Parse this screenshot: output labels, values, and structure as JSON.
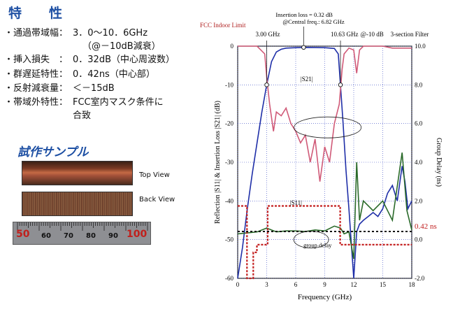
{
  "specs": {
    "title": "特　性",
    "items": [
      {
        "label": "・通過帯域幅：",
        "value": "3．0～10．6GHz"
      },
      {
        "label": "",
        "value": "（@－10dB減衰）"
      },
      {
        "label": "・挿入損失　：",
        "value": "0．32dB（中心周波数）"
      },
      {
        "label": "・群遅延特性：",
        "value": "0．42ns（中心部）"
      },
      {
        "label": "・反射減衰量：",
        "value": "＜－15dB"
      },
      {
        "label": "・帯域外特性：",
        "value": "FCC室内マスク条件に"
      },
      {
        "label": "",
        "value": "合致"
      }
    ]
  },
  "sample": {
    "title": "試作サンプル",
    "top_view": "Top View",
    "back_view": "Back View",
    "ruler_marks": [
      "50",
      "60",
      "70",
      "80",
      "90",
      "100"
    ]
  },
  "chart_data": {
    "type": "line",
    "annotations": {
      "fcc": "FCC Indoor Limit",
      "insertion_loss": "Insertion loss = 0.32 dB",
      "central_freq": "@Central freq.: 6.82 GHz",
      "f_low": "3.00 GHz",
      "f_high": "10.63 GHz",
      "at_10db": "@-10 dB",
      "filter": "3-section Filter",
      "s21": "|S21|",
      "s11": "|S11|",
      "group_delay": "group delay",
      "gd_value": "0.42 ns"
    },
    "xlabel": "Frequency (GHz)",
    "ylabel": "Reflection |S11| & Insertion Loss |S21| (dB)",
    "y2label": "Group Delay (ns)",
    "xlim": [
      0,
      18
    ],
    "ylim": [
      -60,
      0
    ],
    "y2lim": [
      -2.0,
      10.0
    ],
    "xticks": [
      "0",
      "3",
      "6",
      "9",
      "12",
      "15",
      "18"
    ],
    "yticks": [
      "0",
      "-10",
      "-20",
      "-30",
      "-40",
      "-50",
      "-60"
    ],
    "y2ticks": [
      "10.0",
      "8.0",
      "6.0",
      "4.0",
      "2.0",
      "0.0",
      "-2.0"
    ],
    "series": [
      {
        "name": "|S21|",
        "color": "#1f2fa8",
        "x": [
          0,
          0.5,
          1,
          1.5,
          2,
          2.5,
          3,
          3.5,
          4,
          4.5,
          5,
          6,
          7,
          8,
          9,
          10,
          10.4,
          10.63,
          10.9,
          11.2,
          11.5,
          12,
          12.3,
          12.6,
          13,
          13.5,
          14,
          14.5,
          15,
          15.5,
          16,
          16.5,
          17,
          17.3,
          17.6,
          18
        ],
        "y": [
          -60,
          -52,
          -42,
          -33,
          -25,
          -17,
          -10,
          -4,
          -1.5,
          -0.8,
          -0.5,
          -0.4,
          -0.32,
          -0.35,
          -0.4,
          -0.6,
          -2,
          -10,
          -20,
          -32,
          -42,
          -60,
          -48,
          -46,
          -45,
          -44,
          -43,
          -44,
          -42,
          -38,
          -36,
          -40,
          -31,
          -35,
          -42,
          -40
        ]
      },
      {
        "name": "|S11|",
        "color": "#d05a78",
        "x": [
          0,
          1,
          2,
          2.8,
          3,
          3.3,
          3.7,
          4,
          4.5,
          5,
          5.5,
          6,
          6.5,
          7,
          7.5,
          8,
          8.5,
          9,
          9.5,
          10,
          10.5,
          10.8,
          11,
          11.5,
          12,
          12.3,
          12.6,
          13,
          14,
          15,
          16,
          17,
          18
        ],
        "y": [
          0,
          0,
          0,
          -2,
          -8,
          -15,
          -22,
          -17,
          -18,
          -16,
          -20,
          -22,
          -25,
          -23,
          -30,
          -24,
          -35,
          -26,
          -30,
          -20,
          -15,
          -6,
          -2,
          -0.5,
          -1,
          -7,
          -1,
          0,
          0,
          0,
          -0.5,
          -0.5,
          -0.5
        ]
      },
      {
        "name": "group delay",
        "color": "#2a6a2a",
        "x": [
          0,
          2,
          3,
          4,
          5,
          6,
          7,
          8,
          9,
          10,
          10.63,
          11,
          11.5,
          12,
          12.3,
          12.6,
          13,
          14,
          15,
          16,
          17,
          17.5,
          18
        ],
        "y": [
          0.3,
          0.4,
          0.6,
          0.4,
          0.45,
          0.45,
          0.42,
          0.5,
          0.45,
          0.7,
          0.6,
          0.3,
          0.4,
          -1.0,
          4.0,
          1.0,
          2.0,
          1.5,
          2.0,
          1.0,
          4.5,
          1.5,
          0.5
        ]
      },
      {
        "name": "FCC Indoor Limit",
        "color": "#c42020",
        "x": [
          0,
          0.96,
          0.96,
          1.61,
          1.61,
          1.99,
          1.99,
          3.1,
          3.1,
          10.6,
          10.6,
          18
        ],
        "y": [
          -41.3,
          -41.3,
          -75.3,
          -75.3,
          -53.3,
          -53.3,
          -51.3,
          -51.3,
          -41.3,
          -41.3,
          -51.3,
          -51.3
        ]
      }
    ]
  }
}
